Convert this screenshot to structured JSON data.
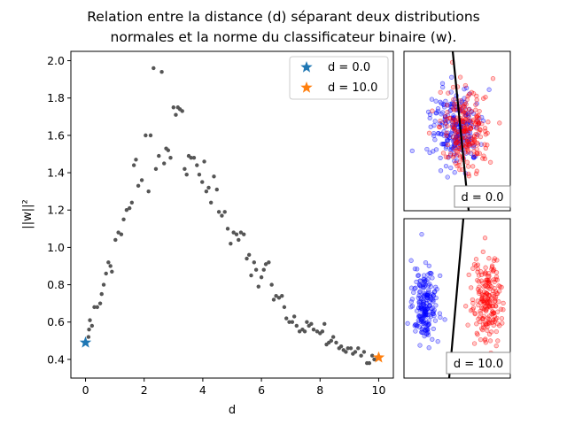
{
  "chart_data": {
    "type": "scatter",
    "title_line1": "Relation entre la distance (d) séparant deux distributions",
    "title_line2": "normales et la norme du classificateur binaire (w).",
    "xlabel": "d",
    "ylabel": "||w||²",
    "xlim": [
      -0.5,
      10.5
    ],
    "ylim": [
      0.3,
      2.05
    ],
    "xticks": [
      "0",
      "2",
      "4",
      "6",
      "8",
      "10"
    ],
    "yticks": [
      "0.4",
      "0.6",
      "0.8",
      "1.0",
      "1.2",
      "1.4",
      "1.6",
      "1.8",
      "2.0"
    ],
    "grid": false,
    "legend_position": "top-right",
    "colors": {
      "points": "#555555",
      "d0": "#1f77b4",
      "d10": "#ff7f0e",
      "class_a": "#0000ff",
      "class_b": "#ff0000",
      "line": "#000000"
    },
    "series": [
      {
        "name": "",
        "x": [
          0.1,
          0.12,
          0.15,
          0.22,
          0.3,
          0.4,
          0.5,
          0.55,
          0.62,
          0.7,
          0.78,
          0.85,
          0.9,
          1.02,
          1.12,
          1.22,
          1.3,
          1.4,
          1.5,
          1.58,
          1.65,
          1.72,
          1.8,
          1.92,
          2.05,
          2.15,
          2.22,
          2.32,
          2.4,
          2.5,
          2.6,
          2.68,
          2.75,
          2.82,
          2.9,
          3.0,
          3.08,
          3.15,
          3.22,
          3.3,
          3.38,
          3.45,
          3.52,
          3.6,
          3.7,
          3.8,
          3.88,
          3.98,
          4.05,
          4.12,
          4.2,
          4.28,
          4.38,
          4.48,
          4.55,
          4.65,
          4.75,
          4.85,
          4.95,
          5.05,
          5.15,
          5.22,
          5.3,
          5.4,
          5.5,
          5.58,
          5.65,
          5.75,
          5.82,
          5.9,
          6.0,
          6.08,
          6.15,
          6.25,
          6.35,
          6.42,
          6.5,
          6.6,
          6.7,
          6.78,
          6.85,
          6.95,
          7.05,
          7.12,
          7.2,
          7.3,
          7.4,
          7.48,
          7.55,
          7.62,
          7.7,
          7.78,
          7.9,
          8.0,
          8.08,
          8.15,
          8.22,
          8.3,
          8.38,
          8.45,
          8.55,
          8.65,
          8.72,
          8.8,
          8.88,
          8.95,
          9.05,
          9.12,
          9.2,
          9.3,
          9.4,
          9.5,
          9.6,
          9.68,
          9.78,
          9.85
        ],
        "y": [
          0.52,
          0.56,
          0.61,
          0.58,
          0.68,
          0.68,
          0.7,
          0.75,
          0.8,
          0.86,
          0.92,
          0.9,
          0.87,
          1.04,
          1.08,
          1.07,
          1.15,
          1.2,
          1.21,
          1.24,
          1.44,
          1.47,
          1.33,
          1.36,
          1.6,
          1.3,
          1.6,
          1.96,
          1.42,
          1.49,
          1.94,
          1.45,
          1.53,
          1.52,
          1.48,
          1.75,
          1.71,
          1.75,
          1.74,
          1.73,
          1.42,
          1.39,
          1.49,
          1.48,
          1.48,
          1.44,
          1.39,
          1.35,
          1.46,
          1.3,
          1.32,
          1.24,
          1.38,
          1.31,
          1.19,
          1.17,
          1.19,
          1.1,
          1.02,
          1.08,
          1.07,
          1.04,
          1.08,
          1.07,
          0.94,
          0.96,
          0.85,
          0.92,
          0.88,
          0.79,
          0.84,
          0.88,
          0.91,
          0.92,
          0.8,
          0.72,
          0.74,
          0.73,
          0.74,
          0.68,
          0.62,
          0.6,
          0.6,
          0.63,
          0.58,
          0.55,
          0.56,
          0.55,
          0.6,
          0.58,
          0.59,
          0.56,
          0.55,
          0.54,
          0.55,
          0.59,
          0.48,
          0.49,
          0.5,
          0.52,
          0.49,
          0.46,
          0.47,
          0.45,
          0.44,
          0.46,
          0.46,
          0.43,
          0.44,
          0.46,
          0.42,
          0.44,
          0.38,
          0.38,
          0.42,
          0.4
        ]
      },
      {
        "name": "d = 0.0",
        "x": [
          0.0
        ],
        "y": [
          0.49
        ]
      },
      {
        "name": "d = 10.0",
        "x": [
          10.0
        ],
        "y": [
          0.41
        ]
      }
    ],
    "insets": [
      {
        "label": "d = 0.0"
      },
      {
        "label": "d = 10.0"
      }
    ]
  }
}
